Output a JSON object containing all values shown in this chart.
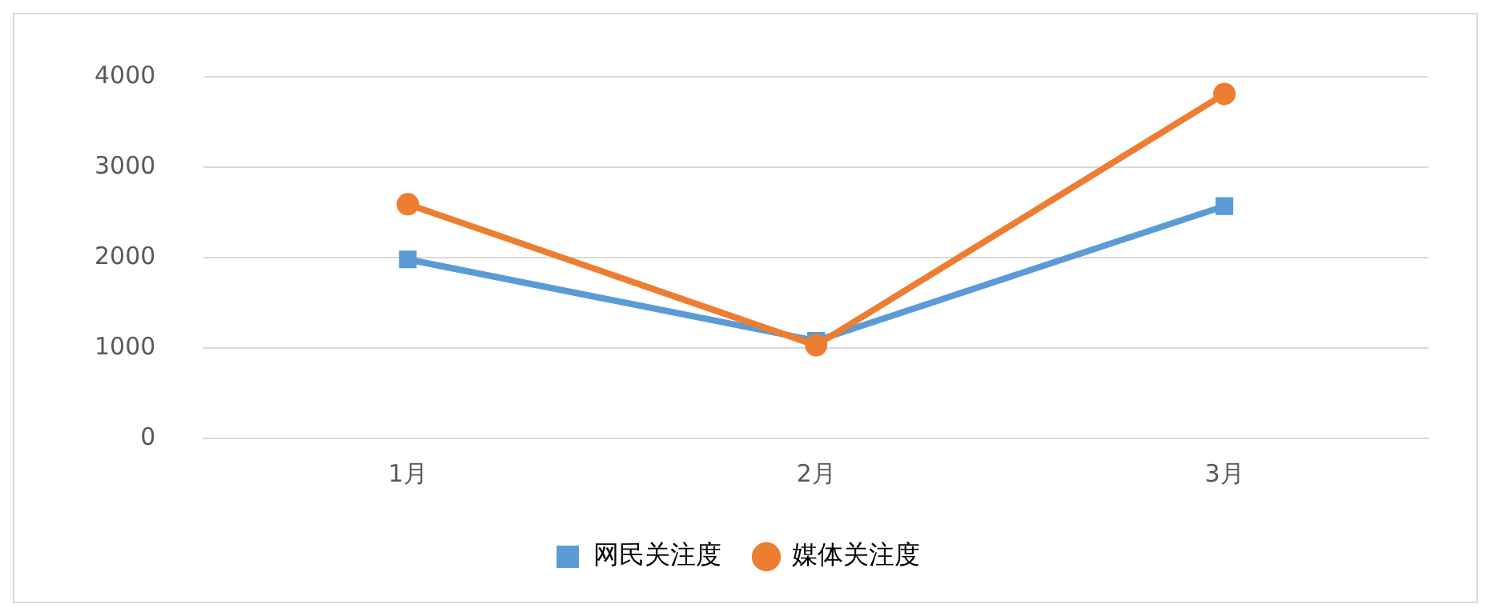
{
  "chart_data": {
    "type": "line",
    "categories": [
      "1月",
      "2月",
      "3月"
    ],
    "series": [
      {
        "name": "网民关注度",
        "color": "#5b9bd5",
        "values": [
          1980,
          1080,
          2570
        ],
        "marker": "square"
      },
      {
        "name": "媒体关注度",
        "color": "#ed7d31",
        "values": [
          2590,
          1030,
          3810
        ],
        "marker": "circle"
      }
    ],
    "ylim": [
      0,
      4000
    ],
    "yticks": [
      0,
      1000,
      2000,
      3000,
      4000
    ],
    "grid": "y",
    "legend": "bottom",
    "line_style": "solid"
  }
}
